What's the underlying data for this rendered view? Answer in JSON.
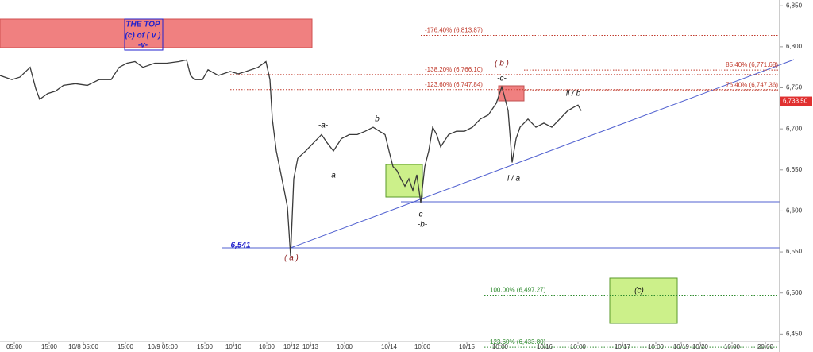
{
  "chart_data": {
    "type": "line",
    "series": [
      {
        "name": "Price",
        "color": "#3a3a3a",
        "x": [
          0,
          3.75,
          6.25,
          9.5,
          11.25,
          12.5,
          15,
          17.5,
          20,
          23.75,
          27.5,
          31.25,
          35,
          37.5,
          40,
          42.5,
          45,
          48.75,
          52.5,
          56.25,
          58.75,
          60,
          61.25,
          63.75,
          65.5,
          68.75,
          72.5,
          75,
          77.5,
          81.25,
          83.75,
          85,
          85.75,
          87,
          88,
          89.5,
          90.5,
          91.5,
          92.5,
          93.75,
          96.25,
          98.75,
          101.25,
          103,
          105,
          107.5,
          110,
          112.5,
          115,
          117.5,
          119.5,
          121.25,
          122.5,
          123.75,
          125,
          126.25,
          127.5,
          128.75,
          130,
          131.25,
          132.5,
          133.75,
          135,
          136.25,
          137.5,
          138.75,
          141.25,
          143.75,
          146.25,
          148.75,
          151.25,
          153.75,
          156.25,
          158,
          158.75,
          160,
          160.5,
          161.25,
          162.5,
          163.75,
          166.25,
          168.75,
          171.25,
          173.75,
          176.25,
          178.75,
          180.5,
          182,
          183
        ],
        "values": [
          6765,
          6760,
          6763,
          6775,
          6749,
          6736,
          6743,
          6746,
          6753,
          6755,
          6753,
          6760,
          6760,
          6775,
          6780,
          6782,
          6775,
          6780,
          6780,
          6782,
          6784,
          6765,
          6760,
          6760,
          6772,
          6765,
          6770,
          6767,
          6770,
          6775,
          6782,
          6760,
          6712,
          6673,
          6654,
          6625,
          6605,
          6545,
          6639,
          6664,
          6673,
          6683,
          6693,
          6683,
          6673,
          6688,
          6693,
          6693,
          6697,
          6702,
          6697,
          6693,
          6673,
          6654,
          6649,
          6639,
          6630,
          6639,
          6625,
          6644,
          6610,
          6654,
          6673,
          6702,
          6693,
          6678,
          6693,
          6697,
          6697,
          6702,
          6712,
          6717,
          6731,
          6751,
          6741,
          6722,
          6697,
          6659,
          6688,
          6702,
          6712,
          6702,
          6707,
          6702,
          6712,
          6722,
          6726,
          6729,
          6722
        ]
      }
    ],
    "xlim": [
      0,
      245.5
    ],
    "xticks": [
      {
        "value": 4.5,
        "label": "05:00"
      },
      {
        "value": 15.5,
        "label": "15:00"
      },
      {
        "value": 26.25,
        "label": "10/8 05:00"
      },
      {
        "value": 39.5,
        "label": "15:00"
      },
      {
        "value": 51.25,
        "label": "10/9 05:00"
      },
      {
        "value": 64.5,
        "label": "15:00"
      },
      {
        "value": 73.5,
        "label": "10/10"
      },
      {
        "value": 84,
        "label": "10:00"
      },
      {
        "value": 91.75,
        "label": "10/12"
      },
      {
        "value": 97.75,
        "label": "10/13"
      },
      {
        "value": 108.5,
        "label": "10:00"
      },
      {
        "value": 122.5,
        "label": "10/14"
      },
      {
        "value": 133,
        "label": "10:00"
      },
      {
        "value": 147,
        "label": "10/15"
      },
      {
        "value": 157.5,
        "label": "10:00"
      },
      {
        "value": 171.5,
        "label": "10/16"
      },
      {
        "value": 182,
        "label": "10:00"
      },
      {
        "value": 196,
        "label": "10/17"
      },
      {
        "value": 206.5,
        "label": "10:00"
      },
      {
        "value": 214.5,
        "label": "10/19"
      },
      {
        "value": 220.5,
        "label": "10/20"
      },
      {
        "value": 230.5,
        "label": "10:00"
      },
      {
        "value": 241,
        "label": "20:00"
      }
    ],
    "ylim": [
      6430,
      6857
    ],
    "yticks": [
      {
        "value": 6450,
        "label": "6,450"
      },
      {
        "value": 6500,
        "label": "6,500"
      },
      {
        "value": 6550,
        "label": "6,550"
      },
      {
        "value": 6600,
        "label": "6,600"
      },
      {
        "value": 6650,
        "label": "6,650"
      },
      {
        "value": 6700,
        "label": "6,700"
      },
      {
        "value": 6750,
        "label": "6,750"
      },
      {
        "value": 6800,
        "label": "6,800"
      },
      {
        "value": 6850,
        "label": "6,850"
      }
    ],
    "last_price": {
      "value": 6733.5,
      "label": "6,733.50"
    },
    "levels": [
      {
        "value": 6813.87,
        "label": "-176.40% (6,813.87)",
        "color": "#c0392b"
      },
      {
        "value": 6766.1,
        "label": "-138.20% (6,766.10)",
        "color": "#c0392b"
      },
      {
        "value": 6747.84,
        "label": "-123.60% (6,747.84)",
        "color": "#c0392b"
      },
      {
        "value": 6771.68,
        "label": "85.40% (6,771.68)",
        "color": "#c0392b"
      },
      {
        "value": 6747.36,
        "label": "76.40% (6,747.36)",
        "color": "#c0392b"
      },
      {
        "value": 6497.27,
        "label": "100.00% (6,497.27)",
        "color": "#2e8b2e"
      },
      {
        "value": 6433.8,
        "label": "123.60% (6,433.80)",
        "color": "#2e8b2e"
      }
    ],
    "annotations": [
      "THE TOP",
      "(c) of ( v )",
      "-v-",
      "6,541",
      "( a )",
      "-a-",
      "a",
      "b",
      "c",
      "-b-",
      "( b )",
      "-c-",
      "ii / b",
      "i / a",
      "(c)"
    ]
  }
}
